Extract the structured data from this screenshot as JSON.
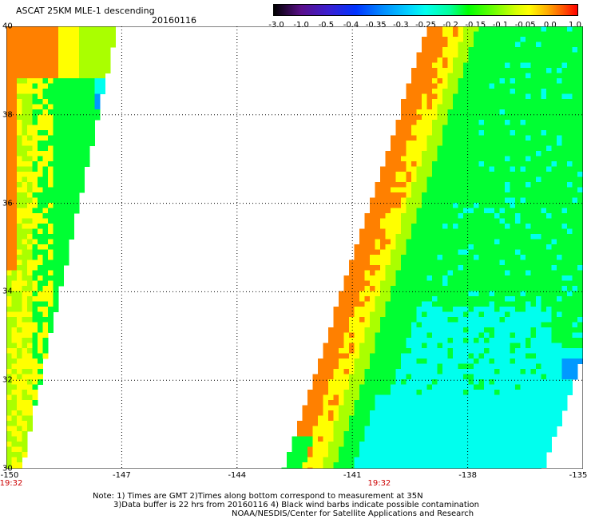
{
  "header": {
    "title": "ASCAT 25KM MLE-1 descending",
    "date": "20160116"
  },
  "colorbar": {
    "labels": [
      "-3.0",
      "-1.0",
      "-0.5",
      "-0.4",
      "-0.35",
      "-0.3",
      "-0.25",
      "-0.2",
      "-0.15",
      "-0.1",
      "-0.05",
      "0.0",
      "1.0"
    ]
  },
  "map": {
    "y_ticks": [
      "40",
      "38",
      "36",
      "34",
      "32",
      "30"
    ],
    "x_ticks": [
      "-150",
      "-147",
      "-144",
      "-141",
      "-138",
      "-135"
    ],
    "lon_range": [
      -150,
      -135
    ],
    "lat_range": [
      30,
      40
    ],
    "gridlines": "dotted",
    "times": [
      {
        "label": "19:32",
        "lon": -150
      },
      {
        "label": "19:32",
        "lon": -140.3
      }
    ],
    "swath_colors": {
      "orange": "#ff8000",
      "yellow": "#ffff00",
      "lime": "#aaff00",
      "green": "#00ff33",
      "cyan": "#00ffee",
      "light_cyan": "#00f0ff",
      "blue": "#0099ff"
    }
  },
  "notes": {
    "line1": "Note: 1) Times are GMT 2)Times along bottom correspond to measurement at 35N",
    "line2": "3)Data buffer is 22 hrs from 20160116 4) Black wind barbs indicate possible contamination",
    "line3": "NOAA/NESDIS/Center for Satellite Applications and Research"
  }
}
